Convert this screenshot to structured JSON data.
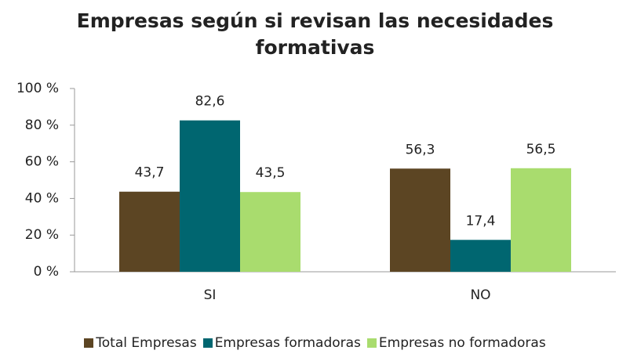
{
  "chart_data": {
    "type": "bar",
    "title": "Empresas según si revisan las necesidades formativas",
    "categories": [
      "SI",
      "NO"
    ],
    "series": [
      {
        "name": "Total Empresas",
        "color": "#5c4523",
        "values": [
          43.7,
          56.3
        ],
        "value_labels": [
          "43,7",
          "56,3"
        ]
      },
      {
        "name": "Empresas formadoras",
        "color": "#006670",
        "values": [
          82.6,
          17.4
        ],
        "value_labels": [
          "82,6",
          "17,4"
        ]
      },
      {
        "name": "Empresas no formadoras",
        "color": "#a9dc6e",
        "values": [
          43.5,
          56.5
        ],
        "value_labels": [
          "43,5",
          "56,5"
        ]
      }
    ],
    "ylim": [
      0,
      100
    ],
    "yticks": [
      {
        "value": 0,
        "label": "0 %"
      },
      {
        "value": 20,
        "label": "20 %"
      },
      {
        "value": 40,
        "label": "40 %"
      },
      {
        "value": 60,
        "label": "60 %"
      },
      {
        "value": 80,
        "label": "80 %"
      },
      {
        "value": 100,
        "label": "100 %"
      }
    ],
    "grid": false
  }
}
